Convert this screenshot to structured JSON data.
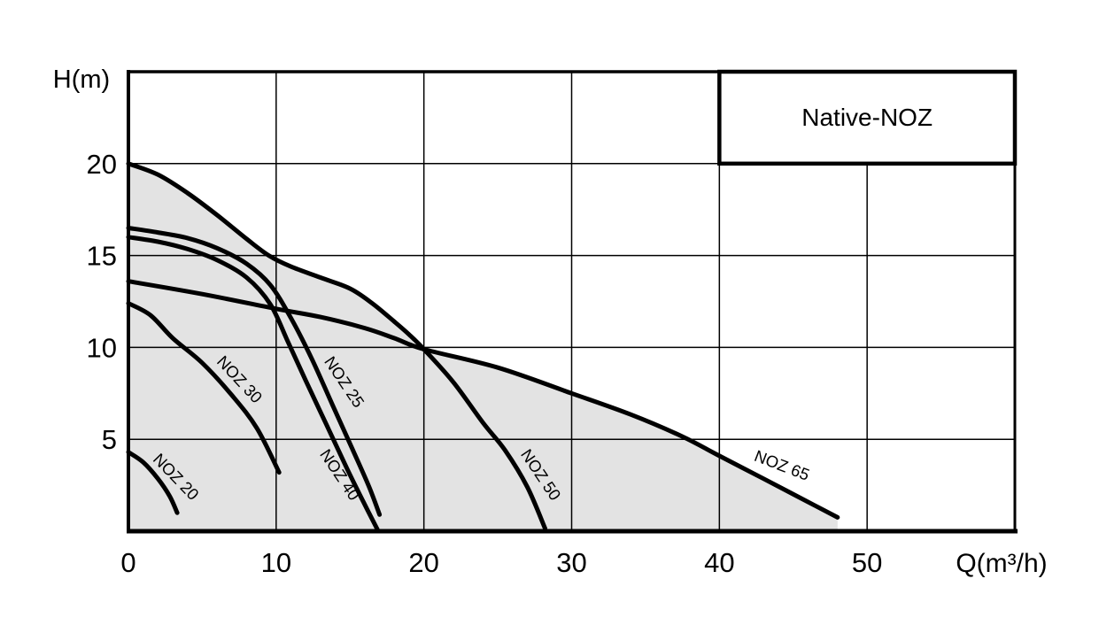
{
  "chart_data": {
    "type": "line",
    "title": "Native-NOZ",
    "legend": {
      "label": "Native-NOZ",
      "position": "top-right"
    },
    "axes": {
      "x": {
        "label": "Q(m³/h)",
        "min": 0,
        "max": 60,
        "grid_step": 10,
        "ticks": [
          "0",
          "10",
          "20",
          "30",
          "40",
          "50"
        ],
        "tick_values": [
          0,
          10,
          20,
          30,
          40,
          50
        ]
      },
      "y": {
        "label": "H(m)",
        "min": 0,
        "max": 25,
        "grid_step": 5,
        "ticks": [
          "20",
          "15",
          "10",
          "5"
        ],
        "tick_values": [
          20,
          15,
          10,
          5
        ]
      }
    },
    "grid": true,
    "colors": {
      "curve": "#000000",
      "grid": "#000000",
      "border": "#000000",
      "envelope_fill": "#e3e3e3",
      "legend_fill": "#ffffff",
      "background": "#ffffff"
    },
    "envelope": {
      "description": "shaded operating region bounded above by NOZ 50 (Q 0-20) and NOZ 65 (Q 20-48)",
      "upper_series": [
        "NOZ 50",
        "NOZ 65"
      ],
      "split_q": 20
    },
    "series": [
      {
        "name": "NOZ 20",
        "points": [
          [
            0,
            4.3
          ],
          [
            1,
            3.75
          ],
          [
            2,
            2.85
          ],
          [
            2.8,
            1.9
          ],
          [
            3.3,
            1.0
          ]
        ],
        "label": {
          "q": 2.95,
          "h": 2.75,
          "angle": 46
        }
      },
      {
        "name": "NOZ 30",
        "points": [
          [
            0,
            12.4
          ],
          [
            1.5,
            11.75
          ],
          [
            3,
            10.5
          ],
          [
            5,
            9.15
          ],
          [
            7,
            7.4
          ],
          [
            8.7,
            5.6
          ],
          [
            10.2,
            3.2
          ]
        ],
        "label": {
          "q": 7.25,
          "h": 8.05,
          "angle": 47
        }
      },
      {
        "name": "NOZ 25",
        "points": [
          [
            0,
            16.5
          ],
          [
            2,
            16.25
          ],
          [
            4,
            15.95
          ],
          [
            6,
            15.4
          ],
          [
            8,
            14.55
          ],
          [
            9.6,
            13.4
          ],
          [
            11,
            11.6
          ],
          [
            12.4,
            9.4
          ],
          [
            13.8,
            6.9
          ],
          [
            15.2,
            4.4
          ],
          [
            16.3,
            2.4
          ],
          [
            17.0,
            0.9
          ]
        ],
        "label": {
          "q": 14.3,
          "h": 7.95,
          "angle": 56
        }
      },
      {
        "name": "NOZ 40",
        "points": [
          [
            0,
            16.0
          ],
          [
            2,
            15.75
          ],
          [
            4,
            15.35
          ],
          [
            6,
            14.75
          ],
          [
            8,
            13.8
          ],
          [
            9.6,
            12.35
          ],
          [
            10.8,
            10.3
          ],
          [
            12,
            8.2
          ],
          [
            13.4,
            5.8
          ],
          [
            14.8,
            3.4
          ],
          [
            15.9,
            1.6
          ],
          [
            16.85,
            0.1
          ]
        ],
        "label": {
          "q": 14.0,
          "h": 2.9,
          "angle": 56
        }
      },
      {
        "name": "NOZ 50",
        "points": [
          [
            0,
            20
          ],
          [
            2,
            19.4
          ],
          [
            4,
            18.4
          ],
          [
            6,
            17.2
          ],
          [
            8,
            15.9
          ],
          [
            9.5,
            15.0
          ],
          [
            11,
            14.4
          ],
          [
            13,
            13.8
          ],
          [
            15,
            13.2
          ],
          [
            16.5,
            12.4
          ],
          [
            18,
            11.4
          ],
          [
            19,
            10.7
          ],
          [
            20,
            9.9
          ],
          [
            22,
            8.1
          ],
          [
            24,
            5.9
          ],
          [
            25.5,
            4.4
          ],
          [
            27,
            2.4
          ],
          [
            28.2,
            0.15
          ]
        ],
        "label": {
          "q": 27.6,
          "h": 2.9,
          "angle": 56
        }
      },
      {
        "name": "NOZ 65",
        "points": [
          [
            0,
            13.6
          ],
          [
            5,
            12.9
          ],
          [
            10,
            12.1
          ],
          [
            13,
            11.65
          ],
          [
            16,
            11.05
          ],
          [
            18,
            10.5
          ],
          [
            20,
            9.9
          ],
          [
            25,
            8.9
          ],
          [
            30,
            7.5
          ],
          [
            34,
            6.35
          ],
          [
            37.5,
            5.15
          ],
          [
            40,
            4.1
          ],
          [
            43,
            2.85
          ],
          [
            45.5,
            1.8
          ],
          [
            48,
            0.75
          ]
        ],
        "label": {
          "q": 44.1,
          "h": 3.3,
          "angle": 21
        }
      }
    ]
  }
}
